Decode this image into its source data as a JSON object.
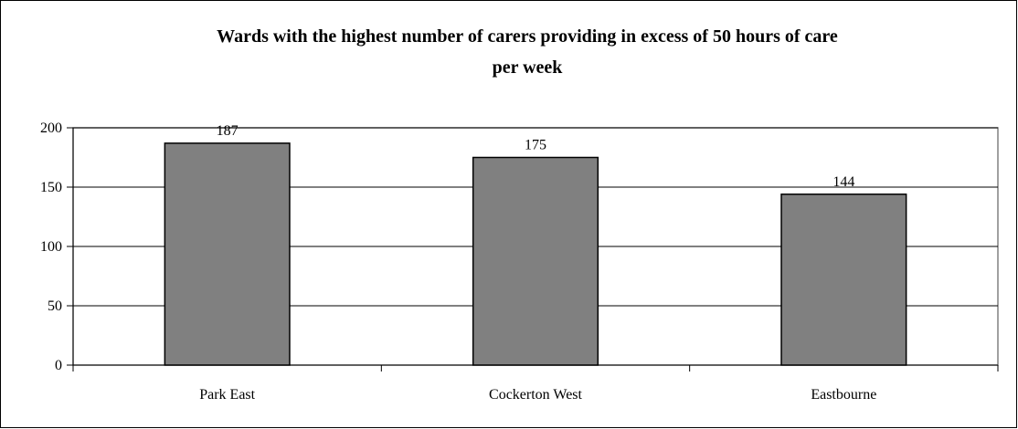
{
  "chart_data": {
    "type": "bar",
    "title_line1": "Wards with the highest number of carers providing in excess of  50 hours of care",
    "title_line2": "per week",
    "categories": [
      "Park East",
      "Cockerton West",
      "Eastbourne"
    ],
    "values": [
      187,
      175,
      144
    ],
    "data_labels": [
      "187",
      "175",
      "144"
    ],
    "xlabel": "",
    "ylabel": "",
    "ylim": [
      0,
      200
    ],
    "yticks": [
      0,
      50,
      100,
      150,
      200
    ],
    "ytick_labels": [
      "0",
      "50",
      "100",
      "150",
      "200"
    ],
    "grid": true,
    "legend": "none",
    "colors": {
      "bar_fill": "#808080",
      "bar_stroke": "#000000",
      "gridline": "#000000",
      "plot_border": "#808080",
      "outer_border": "#000000"
    }
  }
}
